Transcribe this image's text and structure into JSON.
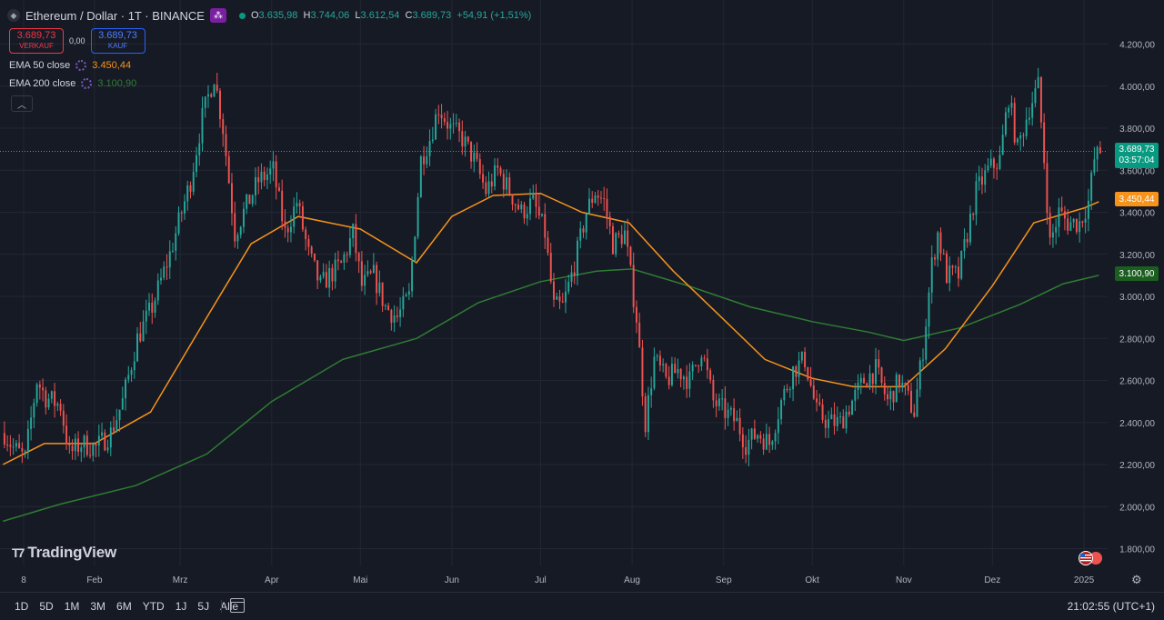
{
  "header": {
    "symbol_title": "Ethereum / Dollar · 1T · BINANCE",
    "ohlc": [
      {
        "k": "O",
        "v": "3.635,98"
      },
      {
        "k": "H",
        "v": "3.744,06"
      },
      {
        "k": "L",
        "v": "3.612,54"
      },
      {
        "k": "C",
        "v": "3.689,73"
      }
    ],
    "change": "+54,91 (+1,51%)",
    "sell_price": "3.689,73",
    "sell_label": "VERKAUF",
    "spread": "0,00",
    "buy_price": "3.689,73",
    "buy_label": "KAUF"
  },
  "indicators": [
    {
      "label": "EMA 50 close",
      "value": "3.450,44",
      "color": "#f7931a"
    },
    {
      "label": "EMA 200 close",
      "value": "3.100,90",
      "color": "#2e7d32"
    }
  ],
  "logo_text": "TradingView",
  "price_labels": {
    "current_price": "3.689,73",
    "countdown": "03:57:04",
    "ema50": "3.450,44",
    "ema200": "3.100,90"
  },
  "colors": {
    "up": "#26a69a",
    "down": "#ef5350",
    "ema50": "#f7931a",
    "ema200": "#2e7d32",
    "background": "#161a25",
    "grid": "#232733"
  },
  "bottom_bar": {
    "ranges": [
      "1D",
      "5D",
      "1M",
      "3M",
      "6M",
      "YTD",
      "1J",
      "5J",
      "Alle"
    ],
    "clock": "21:02:55 (UTC+1)"
  },
  "chart_data": {
    "type": "candlestick",
    "title": "Ethereum / Dollar · 1T · BINANCE",
    "y_ticks": [
      "4.200,00",
      "4.000,00",
      "3.800,00",
      "3.600,00",
      "3.400,00",
      "3.200,00",
      "3.000,00",
      "2.800,00",
      "2.600,00",
      "2.400,00",
      "2.200,00",
      "2.000,00",
      "1.800,00"
    ],
    "ylim": [
      1720,
      4280
    ],
    "x_ticks": [
      {
        "label": "8",
        "date": "2024-01-08"
      },
      {
        "label": "Feb",
        "date": "2024-02-01"
      },
      {
        "label": "Mrz",
        "date": "2024-03-01"
      },
      {
        "label": "Apr",
        "date": "2024-04-01"
      },
      {
        "label": "Mai",
        "date": "2024-05-01"
      },
      {
        "label": "Jun",
        "date": "2024-06-01"
      },
      {
        "label": "Jul",
        "date": "2024-07-01"
      },
      {
        "label": "Aug",
        "date": "2024-08-01"
      },
      {
        "label": "Sep",
        "date": "2024-09-01"
      },
      {
        "label": "Okt",
        "date": "2024-10-01"
      },
      {
        "label": "Nov",
        "date": "2024-11-01"
      },
      {
        "label": "Dez",
        "date": "2024-12-01"
      },
      {
        "label": "2025",
        "date": "2025-01-01"
      }
    ],
    "close_path": [
      [
        "2024-01-01",
        2350
      ],
      [
        "2024-01-04",
        2280
      ],
      [
        "2024-01-08",
        2230
      ],
      [
        "2024-01-12",
        2600
      ],
      [
        "2024-01-15",
        2520
      ],
      [
        "2024-01-20",
        2480
      ],
      [
        "2024-01-23",
        2250
      ],
      [
        "2024-01-27",
        2300
      ],
      [
        "2024-02-01",
        2280
      ],
      [
        "2024-02-06",
        2350
      ],
      [
        "2024-02-10",
        2500
      ],
      [
        "2024-02-15",
        2800
      ],
      [
        "2024-02-20",
        2950
      ],
      [
        "2024-02-26",
        3200
      ],
      [
        "2024-03-04",
        3550
      ],
      [
        "2024-03-08",
        3850
      ],
      [
        "2024-03-12",
        4050
      ],
      [
        "2024-03-15",
        3800
      ],
      [
        "2024-03-19",
        3300
      ],
      [
        "2024-03-22",
        3400
      ],
      [
        "2024-03-27",
        3550
      ],
      [
        "2024-04-01",
        3600
      ],
      [
        "2024-04-05",
        3300
      ],
      [
        "2024-04-09",
        3450
      ],
      [
        "2024-04-13",
        3200
      ],
      [
        "2024-04-17",
        3050
      ],
      [
        "2024-04-20",
        3100
      ],
      [
        "2024-04-24",
        3150
      ],
      [
        "2024-04-28",
        3300
      ],
      [
        "2024-05-01",
        3050
      ],
      [
        "2024-05-05",
        3100
      ],
      [
        "2024-05-09",
        2950
      ],
      [
        "2024-05-13",
        2900
      ],
      [
        "2024-05-17",
        3000
      ],
      [
        "2024-05-21",
        3650
      ],
      [
        "2024-05-24",
        3750
      ],
      [
        "2024-05-27",
        3900
      ],
      [
        "2024-05-31",
        3800
      ],
      [
        "2024-06-04",
        3750
      ],
      [
        "2024-06-08",
        3650
      ],
      [
        "2024-06-12",
        3500
      ],
      [
        "2024-06-16",
        3600
      ],
      [
        "2024-06-20",
        3500
      ],
      [
        "2024-06-24",
        3400
      ],
      [
        "2024-06-28",
        3450
      ],
      [
        "2024-07-02",
        3300
      ],
      [
        "2024-07-05",
        2950
      ],
      [
        "2024-07-08",
        2950
      ],
      [
        "2024-07-12",
        3150
      ],
      [
        "2024-07-16",
        3400
      ],
      [
        "2024-07-19",
        3500
      ],
      [
        "2024-07-22",
        3450
      ],
      [
        "2024-07-25",
        3250
      ],
      [
        "2024-07-29",
        3300
      ],
      [
        "2024-08-02",
        2900
      ],
      [
        "2024-08-05",
        2400
      ],
      [
        "2024-08-08",
        2700
      ],
      [
        "2024-08-12",
        2600
      ],
      [
        "2024-08-16",
        2650
      ],
      [
        "2024-08-20",
        2600
      ],
      [
        "2024-08-24",
        2750
      ],
      [
        "2024-08-28",
        2500
      ],
      [
        "2024-09-01",
        2450
      ],
      [
        "2024-09-05",
        2400
      ],
      [
        "2024-09-08",
        2300
      ],
      [
        "2024-09-12",
        2350
      ],
      [
        "2024-09-16",
        2300
      ],
      [
        "2024-09-20",
        2500
      ],
      [
        "2024-09-24",
        2650
      ],
      [
        "2024-09-28",
        2700
      ],
      [
        "2024-10-02",
        2450
      ],
      [
        "2024-10-06",
        2400
      ],
      [
        "2024-10-10",
        2400
      ],
      [
        "2024-10-14",
        2500
      ],
      [
        "2024-10-18",
        2600
      ],
      [
        "2024-10-22",
        2650
      ],
      [
        "2024-10-26",
        2500
      ],
      [
        "2024-10-30",
        2600
      ],
      [
        "2024-11-04",
        2450
      ],
      [
        "2024-11-07",
        2750
      ],
      [
        "2024-11-10",
        3150
      ],
      [
        "2024-11-12",
        3300
      ],
      [
        "2024-11-15",
        3100
      ],
      [
        "2024-11-19",
        3100
      ],
      [
        "2024-11-22",
        3300
      ],
      [
        "2024-11-25",
        3500
      ],
      [
        "2024-11-29",
        3600
      ],
      [
        "2024-12-03",
        3650
      ],
      [
        "2024-12-06",
        3950
      ],
      [
        "2024-12-09",
        3700
      ],
      [
        "2024-12-13",
        3900
      ],
      [
        "2024-12-16",
        4000
      ],
      [
        "2024-12-18",
        3650
      ],
      [
        "2024-12-20",
        3250
      ],
      [
        "2024-12-23",
        3400
      ],
      [
        "2024-12-26",
        3350
      ],
      [
        "2024-12-30",
        3350
      ],
      [
        "2025-01-02",
        3450
      ],
      [
        "2025-01-04",
        3650
      ],
      [
        "2025-01-06",
        3690
      ]
    ],
    "ema50": [
      [
        "2024-01-01",
        2200
      ],
      [
        "2024-01-15",
        2300
      ],
      [
        "2024-02-01",
        2300
      ],
      [
        "2024-02-20",
        2450
      ],
      [
        "2024-03-10",
        2900
      ],
      [
        "2024-03-25",
        3250
      ],
      [
        "2024-04-10",
        3380
      ],
      [
        "2024-05-01",
        3320
      ],
      [
        "2024-05-20",
        3160
      ],
      [
        "2024-06-01",
        3380
      ],
      [
        "2024-06-15",
        3480
      ],
      [
        "2024-07-01",
        3490
      ],
      [
        "2024-07-15",
        3400
      ],
      [
        "2024-07-31",
        3350
      ],
      [
        "2024-08-15",
        3120
      ],
      [
        "2024-09-01",
        2890
      ],
      [
        "2024-09-15",
        2700
      ],
      [
        "2024-10-01",
        2610
      ],
      [
        "2024-10-15",
        2570
      ],
      [
        "2024-11-01",
        2570
      ],
      [
        "2024-11-15",
        2750
      ],
      [
        "2024-12-01",
        3050
      ],
      [
        "2024-12-15",
        3350
      ],
      [
        "2025-01-01",
        3420
      ],
      [
        "2025-01-06",
        3450
      ]
    ],
    "ema200": [
      [
        "2024-01-01",
        1930
      ],
      [
        "2024-01-20",
        2010
      ],
      [
        "2024-02-15",
        2100
      ],
      [
        "2024-03-10",
        2250
      ],
      [
        "2024-04-01",
        2500
      ],
      [
        "2024-04-25",
        2700
      ],
      [
        "2024-05-20",
        2800
      ],
      [
        "2024-06-10",
        2970
      ],
      [
        "2024-07-01",
        3070
      ],
      [
        "2024-07-20",
        3120
      ],
      [
        "2024-08-01",
        3130
      ],
      [
        "2024-08-20",
        3050
      ],
      [
        "2024-09-10",
        2950
      ],
      [
        "2024-10-01",
        2880
      ],
      [
        "2024-10-20",
        2830
      ],
      [
        "2024-11-01",
        2790
      ],
      [
        "2024-11-20",
        2850
      ],
      [
        "2024-12-10",
        2960
      ],
      [
        "2024-12-25",
        3060
      ],
      [
        "2025-01-06",
        3100
      ]
    ],
    "current_price": 3689.73,
    "grid": true,
    "legend_position": "top-left"
  }
}
